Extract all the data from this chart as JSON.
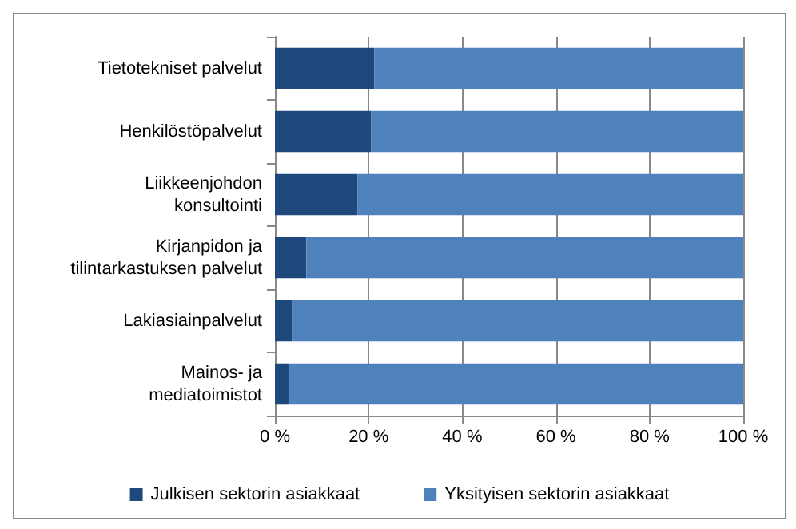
{
  "chart_data": {
    "type": "bar",
    "orientation": "horizontal",
    "stacked": true,
    "categories": [
      "Tietotekniset palvelut",
      "Henkilöstöpalvelut",
      "Liikkeenjohdon\nkonsultointi",
      "Kirjanpidon ja\ntilintarkastuksen palvelut",
      "Lakiasiainpalvelut",
      "Mainos- ja\nmediatoimistot"
    ],
    "series": [
      {
        "name": "Julkisen sektorin asiakkaat",
        "color": "#1f497d",
        "values": [
          21.2,
          20.5,
          17.6,
          6.7,
          3.6,
          2.9
        ]
      },
      {
        "name": "Yksityisen sektorin asiakkaat",
        "color": "#4f81bd",
        "values": [
          78.8,
          79.5,
          82.4,
          93.3,
          96.4,
          97.1
        ]
      }
    ],
    "xlim": [
      0,
      100
    ],
    "xticks": [
      {
        "value": 0,
        "label": "0 %"
      },
      {
        "value": 20,
        "label": "20 %"
      },
      {
        "value": 40,
        "label": "40 %"
      },
      {
        "value": 60,
        "label": "60 %"
      },
      {
        "value": 80,
        "label": "80 %"
      },
      {
        "value": 100,
        "label": "100 %"
      }
    ],
    "grid": "x",
    "legend": "bottom"
  }
}
